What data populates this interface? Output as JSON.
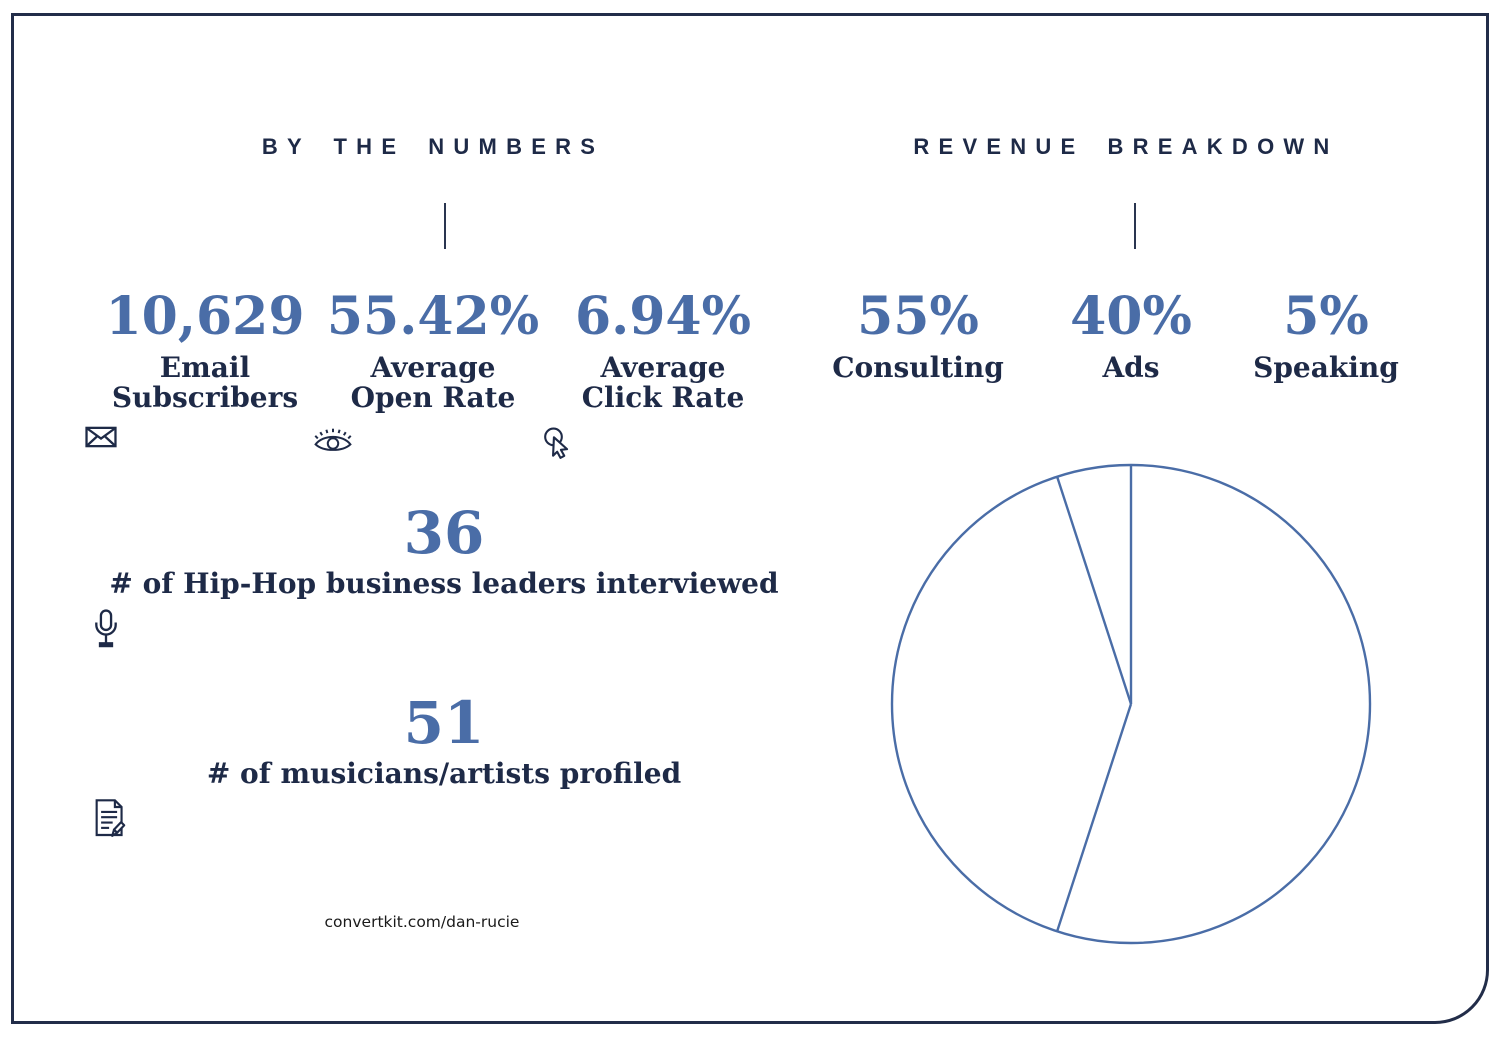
{
  "left_section": {
    "title": "BY THE NUMBERS",
    "stats_row": [
      {
        "value": "10,629",
        "label_lines": [
          "Email",
          "Subscribers"
        ],
        "icon": "envelope-icon"
      },
      {
        "value": "55.42%",
        "label_lines": [
          "Average",
          "Open Rate"
        ],
        "icon": "eye-icon"
      },
      {
        "value": "6.94%",
        "label_lines": [
          "Average",
          "Click Rate"
        ],
        "icon": "cursor-click-icon"
      }
    ],
    "stats_stacked": [
      {
        "value": "36",
        "label": "# of Hip-Hop business leaders interviewed",
        "icon": "microphone-icon"
      },
      {
        "value": "51",
        "label": "# of musicians/artists profiled",
        "icon": "document-pencil-icon"
      }
    ],
    "footer_url": "convertkit.com/dan-rucie"
  },
  "right_section": {
    "title": "REVENUE BREAKDOWN",
    "stats_row": [
      {
        "value": "55%",
        "label": "Consulting"
      },
      {
        "value": "40%",
        "label": "Ads"
      },
      {
        "value": "5%",
        "label": "Speaking"
      }
    ]
  },
  "chart_data": {
    "type": "pie",
    "title": "Revenue Breakdown",
    "categories": [
      "Consulting",
      "Ads",
      "Speaking"
    ],
    "values": [
      55,
      40,
      5
    ],
    "unit": "%",
    "start_angle_deg": 0,
    "direction": "clockwise",
    "style": "outline-only pie, white unfilled slices, blue stroke",
    "radius_px": 239,
    "stroke_width_px": 2.4
  },
  "colors": {
    "accent_blue": "#4a6da7",
    "navy": "#1e2a47",
    "border_navy": "#222d49",
    "background": "#ffffff"
  }
}
